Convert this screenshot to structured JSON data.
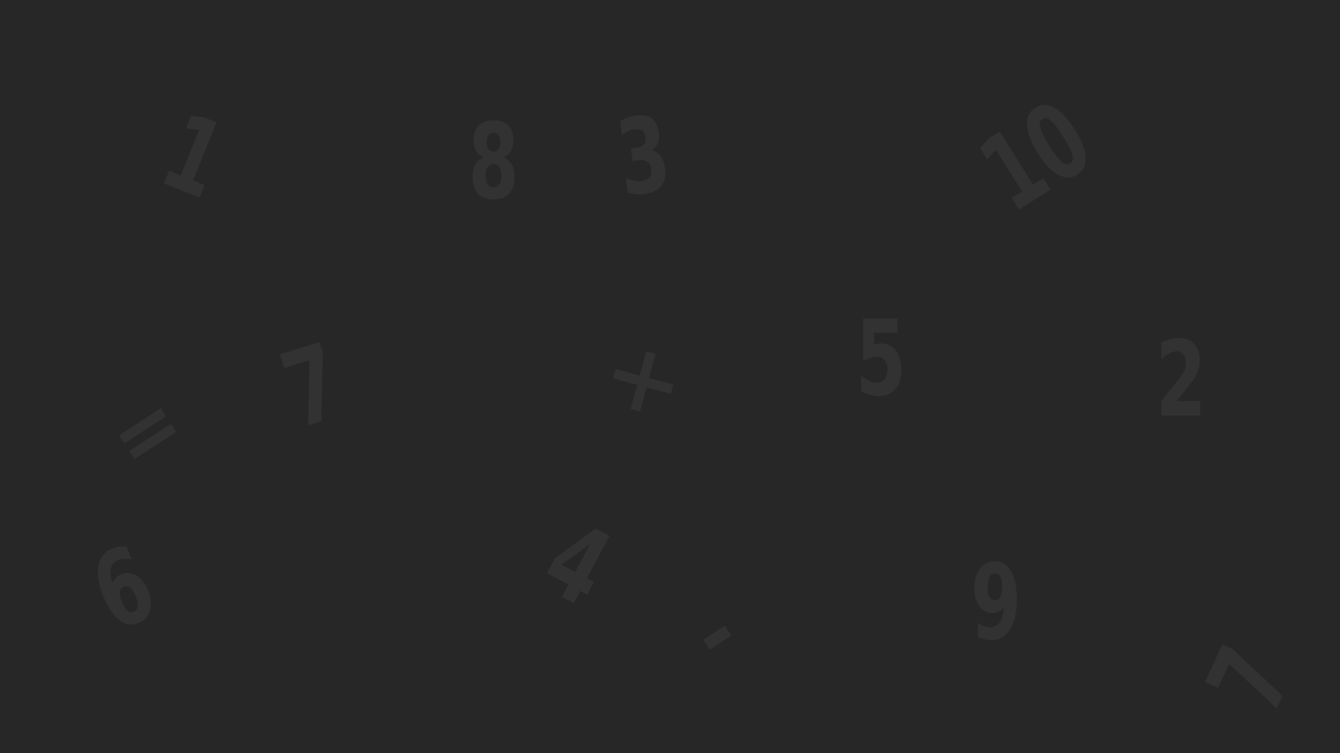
{
  "background_color": "#272727",
  "glyph_color": "#323232",
  "glyphs": {
    "one": "1",
    "eight": "8",
    "three": "3",
    "ten": "10",
    "equals": "=",
    "seven_a": "7",
    "times": "×",
    "five": "5",
    "two": "2",
    "six": "6",
    "four": "4",
    "minus": "-",
    "nine": "9",
    "seven_b": "7"
  }
}
